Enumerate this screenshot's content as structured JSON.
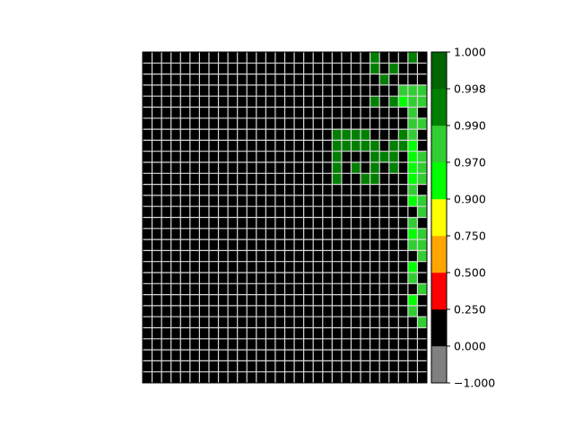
{
  "chart_data": {
    "type": "heatmap",
    "title": "",
    "xlabel": "",
    "ylabel": "",
    "grid": true,
    "grid_color": "#d9d9d9",
    "shape": [
      30,
      30
    ],
    "colorbar": {
      "boundaries": [
        -1.0,
        0.0,
        0.25,
        0.5,
        0.75,
        0.9,
        0.97,
        0.99,
        0.998,
        1.0
      ],
      "colors": [
        "#808080",
        "#000000",
        "#ff0000",
        "#ffa500",
        "#ffff00",
        "#00ff00",
        "#32cd32",
        "#008000",
        "#006400"
      ],
      "tick_labels": [
        "−1.000",
        "0.000",
        "0.250",
        "0.500",
        "0.750",
        "0.900",
        "0.970",
        "0.990",
        "0.998",
        "1.000"
      ]
    },
    "legend_codes": {
      "0": "black (0.000–0.250)",
      "1": "bright green (0.900–0.970)",
      "2": "lime green (0.970–0.990)",
      "3": "green (0.990–0.998)",
      "4": "dark green (0.998–1.000)"
    },
    "grid_codes": [
      "000000000000000000000000300030",
      "000000000000000000000000303000",
      "000000000000000000000000030000",
      "000000000000000000000000000222",
      "000000000000000000000000303122",
      "000000000000000000000000000020",
      "000000000000000000000000000022",
      "000000000000000000003333000320",
      "000000000000000000003333303310",
      "000000000000000000003000333012",
      "000000000000000000003030303012",
      "000000000000000000003003300012",
      "000000000000000000000000000020",
      "000000000000000000000000000012",
      "000000000000000000000000000002",
      "000000000000000000000000000020",
      "000000000000000000000000000012",
      "000000000000000000000000000022",
      "000000000000000000000000000002",
      "000000000000000000000000000010",
      "000000000000000000000000000020",
      "000000000000000000000000000002",
      "000000000000000000000000000010",
      "000000000000000000000000000020",
      "000000000000000000000000000002",
      "000000000000000000000000000000",
      "000000000000000000000000000000",
      "000000000000000000000000000000",
      "000000000000000000000000000000",
      "000000000000000000000000000000"
    ]
  }
}
